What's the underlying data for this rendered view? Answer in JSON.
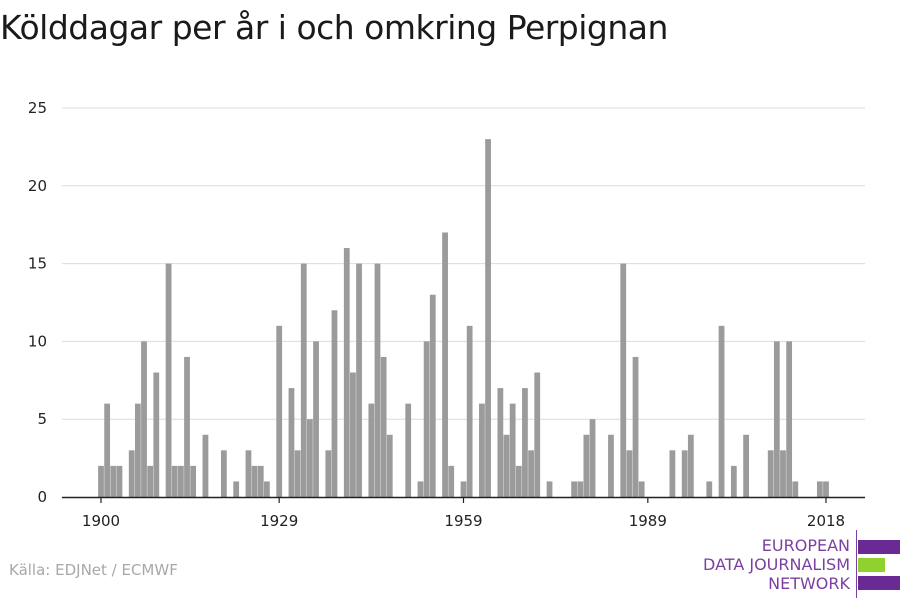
{
  "title": "Kölddagar per år i och omkring Perpignan",
  "source": "Källa: EDJNet / ECMWF",
  "logo": {
    "line1": "EUROPEAN",
    "line2": "DATA JOURNALISM",
    "line3": "NETWORK",
    "colors": {
      "purple": "#6a2a93",
      "green": "#8fd12e"
    }
  },
  "colors": {
    "bar": "#9b9b9b",
    "grid": "#dcdcdc",
    "axis": "#222222"
  },
  "chart_data": {
    "type": "bar",
    "title": "Kölddagar per år i och omkring Perpignan",
    "xlabel": "",
    "ylabel": "",
    "xlim": [
      1900,
      2018
    ],
    "ylim": [
      0,
      25
    ],
    "yticks": [
      0,
      5,
      10,
      15,
      20,
      25
    ],
    "xticks": [
      1900,
      1929,
      1959,
      1989,
      2018
    ],
    "grid": true,
    "x": [
      1900,
      1901,
      1902,
      1903,
      1904,
      1905,
      1906,
      1907,
      1908,
      1909,
      1910,
      1911,
      1912,
      1913,
      1914,
      1915,
      1916,
      1917,
      1918,
      1919,
      1920,
      1921,
      1922,
      1923,
      1924,
      1925,
      1926,
      1927,
      1928,
      1929,
      1930,
      1931,
      1932,
      1933,
      1934,
      1935,
      1936,
      1937,
      1938,
      1939,
      1940,
      1941,
      1942,
      1943,
      1944,
      1945,
      1946,
      1947,
      1948,
      1949,
      1950,
      1951,
      1952,
      1953,
      1954,
      1955,
      1956,
      1957,
      1958,
      1959,
      1960,
      1961,
      1962,
      1963,
      1964,
      1965,
      1966,
      1967,
      1968,
      1969,
      1970,
      1971,
      1972,
      1973,
      1974,
      1975,
      1976,
      1977,
      1978,
      1979,
      1980,
      1981,
      1982,
      1983,
      1984,
      1985,
      1986,
      1987,
      1988,
      1989,
      1990,
      1991,
      1992,
      1993,
      1994,
      1995,
      1996,
      1997,
      1998,
      1999,
      2000,
      2001,
      2002,
      2003,
      2004,
      2005,
      2006,
      2007,
      2008,
      2009,
      2010,
      2011,
      2012,
      2013,
      2014,
      2015,
      2016,
      2017,
      2018
    ],
    "values": [
      2,
      6,
      2,
      2,
      0,
      3,
      6,
      10,
      2,
      8,
      0,
      15,
      2,
      2,
      9,
      2,
      0,
      4,
      0,
      0,
      3,
      0,
      1,
      0,
      3,
      2,
      2,
      1,
      0,
      11,
      0,
      7,
      3,
      15,
      5,
      10,
      0,
      3,
      12,
      0,
      16,
      8,
      15,
      0,
      6,
      15,
      9,
      4,
      0,
      0,
      6,
      0,
      1,
      10,
      13,
      0,
      17,
      2,
      0,
      1,
      11,
      0,
      6,
      23,
      0,
      7,
      4,
      6,
      2,
      7,
      3,
      8,
      0,
      1,
      0,
      0,
      0,
      1,
      1,
      4,
      5,
      0,
      0,
      4,
      0,
      15,
      3,
      9,
      1,
      0,
      0,
      0,
      0,
      3,
      0,
      3,
      4,
      0,
      0,
      1,
      0,
      11,
      0,
      2,
      0,
      4,
      0,
      0,
      0,
      3,
      10,
      3,
      10,
      1,
      0,
      0,
      0,
      1,
      1
    ]
  }
}
